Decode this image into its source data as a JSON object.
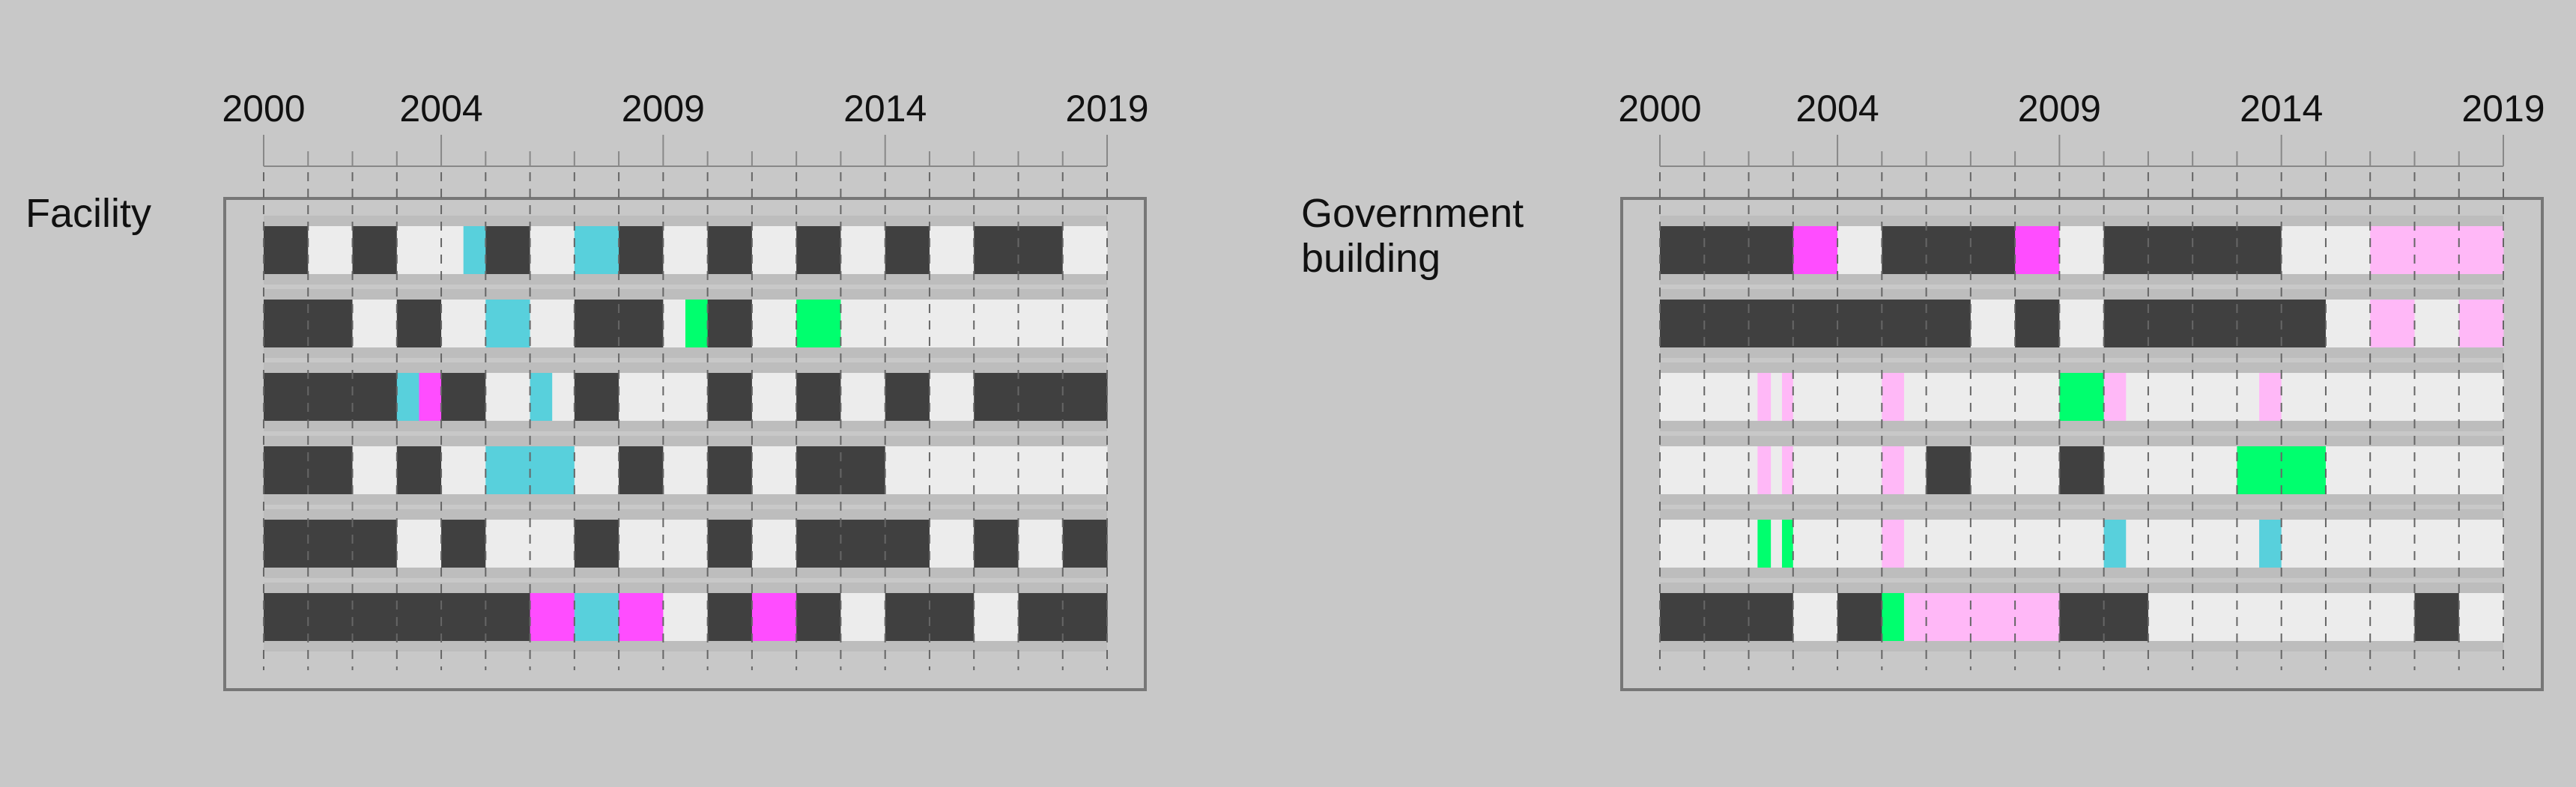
{
  "timeline": {
    "start_year": 2000,
    "end_year": 2019,
    "tick_labels": [
      "2000",
      "2004",
      "2009",
      "2014",
      "2019"
    ],
    "colors": {
      "background": "#c8c8c8",
      "track": "#bdbdbd",
      "dark": "#404040",
      "light": "#ececec",
      "cyan": "#58d0dc",
      "magenta": "#ff4dff",
      "green": "#00ff6e",
      "pink": "#ffb8f7",
      "frame": "#777777",
      "axis": "#888888",
      "dash": "#666666"
    }
  },
  "chart_data": [
    {
      "type": "timeline",
      "title": "Facility",
      "x_range": [
        2000,
        2019
      ],
      "rows": [
        {
          "segments": [
            {
              "start": 2000,
              "end": 2001,
              "color": "dark"
            },
            {
              "start": 2001,
              "end": 2002,
              "color": "light"
            },
            {
              "start": 2002,
              "end": 2003,
              "color": "dark"
            },
            {
              "start": 2003,
              "end": 2004.5,
              "color": "light"
            },
            {
              "start": 2004.5,
              "end": 2005,
              "color": "cyan"
            },
            {
              "start": 2005,
              "end": 2006,
              "color": "dark"
            },
            {
              "start": 2006,
              "end": 2007,
              "color": "light"
            },
            {
              "start": 2007,
              "end": 2008,
              "color": "cyan"
            },
            {
              "start": 2008,
              "end": 2009,
              "color": "dark"
            },
            {
              "start": 2009,
              "end": 2011,
              "color": "light"
            },
            {
              "start": 2010,
              "end": 2011,
              "color": "dark"
            },
            {
              "start": 2011,
              "end": 2012,
              "color": "light"
            },
            {
              "start": 2012,
              "end": 2013,
              "color": "dark"
            },
            {
              "start": 2013,
              "end": 2014,
              "color": "light"
            },
            {
              "start": 2014,
              "end": 2015,
              "color": "dark"
            },
            {
              "start": 2015,
              "end": 2016,
              "color": "light"
            },
            {
              "start": 2016,
              "end": 2018,
              "color": "dark"
            },
            {
              "start": 2018,
              "end": 2019,
              "color": "light"
            }
          ]
        },
        {
          "segments": [
            {
              "start": 2000,
              "end": 2002,
              "color": "dark"
            },
            {
              "start": 2002,
              "end": 2003,
              "color": "light"
            },
            {
              "start": 2003,
              "end": 2004,
              "color": "dark"
            },
            {
              "start": 2004,
              "end": 2005,
              "color": "light"
            },
            {
              "start": 2005,
              "end": 2006,
              "color": "cyan"
            },
            {
              "start": 2006,
              "end": 2007,
              "color": "light"
            },
            {
              "start": 2007,
              "end": 2009,
              "color": "dark"
            },
            {
              "start": 2009,
              "end": 2009.5,
              "color": "light"
            },
            {
              "start": 2009.5,
              "end": 2010,
              "color": "green"
            },
            {
              "start": 2010,
              "end": 2011,
              "color": "dark"
            },
            {
              "start": 2011,
              "end": 2012,
              "color": "light"
            },
            {
              "start": 2012,
              "end": 2013,
              "color": "green"
            },
            {
              "start": 2013,
              "end": 2019,
              "color": "light"
            }
          ]
        },
        {
          "segments": [
            {
              "start": 2000,
              "end": 2003,
              "color": "dark"
            },
            {
              "start": 2003,
              "end": 2003.5,
              "color": "cyan"
            },
            {
              "start": 2003.5,
              "end": 2004,
              "color": "magenta"
            },
            {
              "start": 2004,
              "end": 2005,
              "color": "dark"
            },
            {
              "start": 2005,
              "end": 2006,
              "color": "light"
            },
            {
              "start": 2006,
              "end": 2006.5,
              "color": "cyan"
            },
            {
              "start": 2006.5,
              "end": 2007,
              "color": "light"
            },
            {
              "start": 2007,
              "end": 2008,
              "color": "dark"
            },
            {
              "start": 2008,
              "end": 2010,
              "color": "light"
            },
            {
              "start": 2010,
              "end": 2011,
              "color": "dark"
            },
            {
              "start": 2011,
              "end": 2012,
              "color": "light"
            },
            {
              "start": 2012,
              "end": 2013,
              "color": "dark"
            },
            {
              "start": 2013,
              "end": 2014,
              "color": "light"
            },
            {
              "start": 2014,
              "end": 2015,
              "color": "dark"
            },
            {
              "start": 2015,
              "end": 2016,
              "color": "light"
            },
            {
              "start": 2016,
              "end": 2019,
              "color": "dark"
            }
          ]
        },
        {
          "segments": [
            {
              "start": 2000,
              "end": 2002,
              "color": "dark"
            },
            {
              "start": 2002,
              "end": 2003,
              "color": "light"
            },
            {
              "start": 2003,
              "end": 2004,
              "color": "dark"
            },
            {
              "start": 2004,
              "end": 2005,
              "color": "light"
            },
            {
              "start": 2005,
              "end": 2007,
              "color": "cyan"
            },
            {
              "start": 2007,
              "end": 2008,
              "color": "light"
            },
            {
              "start": 2008,
              "end": 2009,
              "color": "dark"
            },
            {
              "start": 2009,
              "end": 2010,
              "color": "light"
            },
            {
              "start": 2010,
              "end": 2011,
              "color": "dark"
            },
            {
              "start": 2011,
              "end": 2012,
              "color": "light"
            },
            {
              "start": 2012,
              "end": 2014,
              "color": "dark"
            },
            {
              "start": 2014,
              "end": 2019,
              "color": "light"
            }
          ]
        },
        {
          "segments": [
            {
              "start": 2000,
              "end": 2003,
              "color": "dark"
            },
            {
              "start": 2003,
              "end": 2004,
              "color": "light"
            },
            {
              "start": 2004,
              "end": 2005,
              "color": "dark"
            },
            {
              "start": 2005,
              "end": 2007,
              "color": "light"
            },
            {
              "start": 2007,
              "end": 2008,
              "color": "dark"
            },
            {
              "start": 2008,
              "end": 2010,
              "color": "light"
            },
            {
              "start": 2010,
              "end": 2011,
              "color": "dark"
            },
            {
              "start": 2011,
              "end": 2012,
              "color": "light"
            },
            {
              "start": 2012,
              "end": 2015,
              "color": "dark"
            },
            {
              "start": 2015,
              "end": 2016,
              "color": "light"
            },
            {
              "start": 2016,
              "end": 2017,
              "color": "dark"
            },
            {
              "start": 2017,
              "end": 2018,
              "color": "light"
            },
            {
              "start": 2018,
              "end": 2019,
              "color": "dark"
            }
          ]
        },
        {
          "segments": [
            {
              "start": 2000,
              "end": 2006,
              "color": "dark"
            },
            {
              "start": 2006,
              "end": 2007,
              "color": "magenta"
            },
            {
              "start": 2007,
              "end": 2008,
              "color": "cyan"
            },
            {
              "start": 2008,
              "end": 2009,
              "color": "magenta"
            },
            {
              "start": 2009,
              "end": 2010,
              "color": "light"
            },
            {
              "start": 2010,
              "end": 2011,
              "color": "dark"
            },
            {
              "start": 2011,
              "end": 2012,
              "color": "magenta"
            },
            {
              "start": 2012,
              "end": 2013,
              "color": "dark"
            },
            {
              "start": 2013,
              "end": 2014,
              "color": "light"
            },
            {
              "start": 2014,
              "end": 2016,
              "color": "dark"
            },
            {
              "start": 2016,
              "end": 2017,
              "color": "light"
            },
            {
              "start": 2017,
              "end": 2019,
              "color": "dark"
            }
          ]
        }
      ]
    },
    {
      "type": "timeline",
      "title": "Government building",
      "x_range": [
        2000,
        2019
      ],
      "rows": [
        {
          "segments": [
            {
              "start": 2000,
              "end": 2003,
              "color": "dark"
            },
            {
              "start": 2003,
              "end": 2004,
              "color": "magenta"
            },
            {
              "start": 2004,
              "end": 2005,
              "color": "light"
            },
            {
              "start": 2005,
              "end": 2008,
              "color": "dark"
            },
            {
              "start": 2008,
              "end": 2009,
              "color": "magenta"
            },
            {
              "start": 2009,
              "end": 2010,
              "color": "light"
            },
            {
              "start": 2010,
              "end": 2014,
              "color": "dark"
            },
            {
              "start": 2014,
              "end": 2016,
              "color": "light"
            },
            {
              "start": 2016,
              "end": 2019,
              "color": "pink"
            }
          ]
        },
        {
          "segments": [
            {
              "start": 2000,
              "end": 2007,
              "color": "dark"
            },
            {
              "start": 2007,
              "end": 2008,
              "color": "light"
            },
            {
              "start": 2008,
              "end": 2009,
              "color": "dark"
            },
            {
              "start": 2009,
              "end": 2010,
              "color": "light"
            },
            {
              "start": 2010,
              "end": 2015,
              "color": "dark"
            },
            {
              "start": 2015,
              "end": 2016,
              "color": "light"
            },
            {
              "start": 2016,
              "end": 2017,
              "color": "pink"
            },
            {
              "start": 2017,
              "end": 2018,
              "color": "light"
            },
            {
              "start": 2018,
              "end": 2019,
              "color": "pink"
            }
          ]
        },
        {
          "segments": [
            {
              "start": 2000,
              "end": 2002.2,
              "color": "light"
            },
            {
              "start": 2002.2,
              "end": 2002.5,
              "color": "pink"
            },
            {
              "start": 2002.5,
              "end": 2002.75,
              "color": "light"
            },
            {
              "start": 2002.75,
              "end": 2003,
              "color": "pink"
            },
            {
              "start": 2003,
              "end": 2005,
              "color": "light"
            },
            {
              "start": 2005,
              "end": 2005.5,
              "color": "pink"
            },
            {
              "start": 2005.5,
              "end": 2009,
              "color": "light"
            },
            {
              "start": 2009,
              "end": 2010,
              "color": "green"
            },
            {
              "start": 2010,
              "end": 2010.5,
              "color": "pink"
            },
            {
              "start": 2010.5,
              "end": 2013.5,
              "color": "light"
            },
            {
              "start": 2013.5,
              "end": 2014,
              "color": "pink"
            },
            {
              "start": 2014,
              "end": 2019,
              "color": "light"
            }
          ]
        },
        {
          "segments": [
            {
              "start": 2000,
              "end": 2002.2,
              "color": "light"
            },
            {
              "start": 2002.2,
              "end": 2002.5,
              "color": "pink"
            },
            {
              "start": 2002.5,
              "end": 2002.75,
              "color": "light"
            },
            {
              "start": 2002.75,
              "end": 2003,
              "color": "pink"
            },
            {
              "start": 2003,
              "end": 2005,
              "color": "light"
            },
            {
              "start": 2005,
              "end": 2005.5,
              "color": "pink"
            },
            {
              "start": 2005.5,
              "end": 2006,
              "color": "light"
            },
            {
              "start": 2006,
              "end": 2007,
              "color": "dark"
            },
            {
              "start": 2007,
              "end": 2009,
              "color": "light"
            },
            {
              "start": 2009,
              "end": 2010,
              "color": "dark"
            },
            {
              "start": 2010,
              "end": 2013,
              "color": "light"
            },
            {
              "start": 2013,
              "end": 2015,
              "color": "green"
            },
            {
              "start": 2015,
              "end": 2019,
              "color": "light"
            }
          ]
        },
        {
          "segments": [
            {
              "start": 2000,
              "end": 2002.2,
              "color": "light"
            },
            {
              "start": 2002.2,
              "end": 2002.5,
              "color": "green"
            },
            {
              "start": 2002.5,
              "end": 2002.75,
              "color": "light"
            },
            {
              "start": 2002.75,
              "end": 2003,
              "color": "green"
            },
            {
              "start": 2003,
              "end": 2005,
              "color": "light"
            },
            {
              "start": 2005,
              "end": 2005.5,
              "color": "pink"
            },
            {
              "start": 2005.5,
              "end": 2010,
              "color": "light"
            },
            {
              "start": 2010,
              "end": 2010.5,
              "color": "cyan"
            },
            {
              "start": 2010.5,
              "end": 2013.5,
              "color": "light"
            },
            {
              "start": 2013.5,
              "end": 2014,
              "color": "cyan"
            },
            {
              "start": 2014,
              "end": 2019,
              "color": "light"
            }
          ]
        },
        {
          "segments": [
            {
              "start": 2000,
              "end": 2003,
              "color": "dark"
            },
            {
              "start": 2003,
              "end": 2004,
              "color": "light"
            },
            {
              "start": 2004,
              "end": 2005,
              "color": "dark"
            },
            {
              "start": 2005,
              "end": 2005.5,
              "color": "green"
            },
            {
              "start": 2005.5,
              "end": 2009,
              "color": "pink"
            },
            {
              "start": 2009,
              "end": 2011,
              "color": "dark"
            },
            {
              "start": 2011,
              "end": 2017,
              "color": "light"
            },
            {
              "start": 2017,
              "end": 2018,
              "color": "dark"
            },
            {
              "start": 2018,
              "end": 2019,
              "color": "light"
            }
          ]
        }
      ]
    }
  ]
}
